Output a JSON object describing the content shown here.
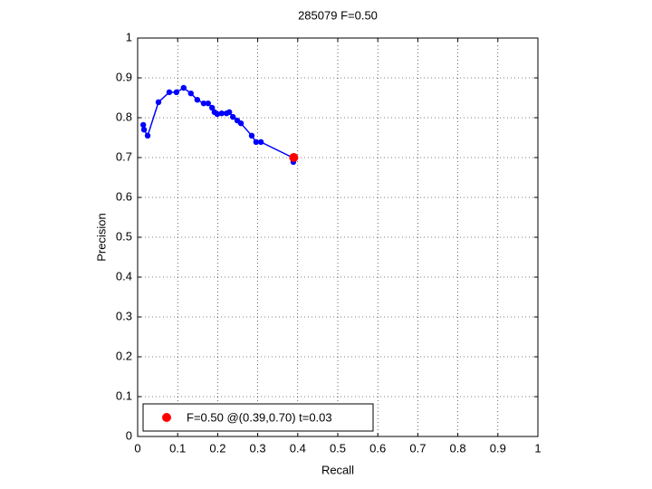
{
  "chart_data": {
    "type": "line",
    "title": "285079 F=0.50",
    "xlabel": "Recall",
    "ylabel": "Precision",
    "xlim": [
      0,
      1
    ],
    "ylim": [
      0,
      1
    ],
    "xticks": [
      0,
      0.1,
      0.2,
      0.3,
      0.4,
      0.5,
      0.6,
      0.7,
      0.8,
      0.9,
      1
    ],
    "yticks": [
      0,
      0.1,
      0.2,
      0.3,
      0.4,
      0.5,
      0.6,
      0.7,
      0.8,
      0.9,
      1
    ],
    "grid": true,
    "legend": "lower left",
    "series": [
      {
        "color": "#0000ff",
        "line": true,
        "x": [
          0.014,
          0.016,
          0.025,
          0.052,
          0.079,
          0.097,
          0.115,
          0.133,
          0.149,
          0.165,
          0.176,
          0.186,
          0.192,
          0.199,
          0.21,
          0.222,
          0.229,
          0.238,
          0.249,
          0.258,
          0.285,
          0.296,
          0.308,
          0.387,
          0.389
        ],
        "values": [
          0.782,
          0.77,
          0.755,
          0.839,
          0.864,
          0.864,
          0.875,
          0.861,
          0.845,
          0.836,
          0.836,
          0.825,
          0.814,
          0.809,
          0.811,
          0.811,
          0.814,
          0.802,
          0.793,
          0.786,
          0.755,
          0.739,
          0.739,
          0.7,
          0.689
        ]
      },
      {
        "name": "F=0.50 @(0.39,0.70) t=0.03",
        "color": "#ff0000",
        "line": false,
        "x": [
          0.39
        ],
        "values": [
          0.7
        ]
      }
    ]
  }
}
